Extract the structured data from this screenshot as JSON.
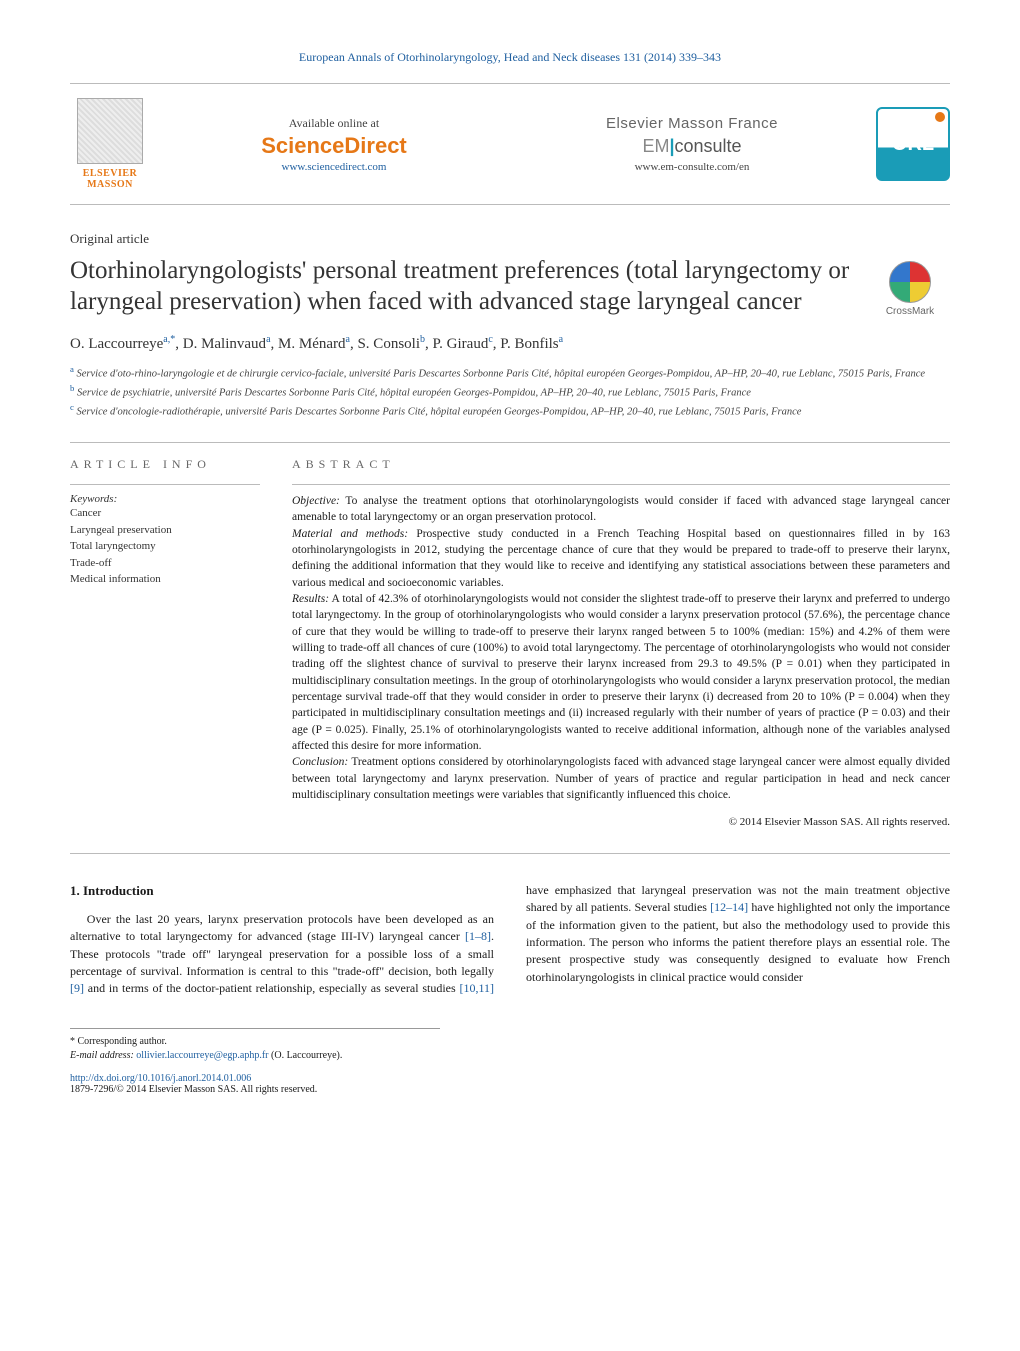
{
  "journal_header": "European Annals of Otorhinolaryngology, Head and Neck diseases 131 (2014) 339–343",
  "banner": {
    "elsevier_label": "ELSEVIER MASSON",
    "available_label": "Available online at",
    "sciencedirect": "ScienceDirect",
    "sd_url": "www.sciencedirect.com",
    "masson_label": "Elsevier Masson France",
    "em_prefix": "EM",
    "em_suffix": "consulte",
    "em_url": "www.em-consulte.com/en",
    "orl_label": "ORL"
  },
  "crossmark_label": "CrossMark",
  "article_type": "Original article",
  "title": "Otorhinolaryngologists' personal treatment preferences (total laryngectomy or laryngeal preservation) when faced with advanced stage laryngeal cancer",
  "authors_html": "O. Laccourreye<sup>a,*</sup>, D. Malinvaud<sup>a</sup>, M. Ménard<sup>a</sup>, S. Consoli<sup>b</sup>, P. Giraud<sup>c</sup>, P. Bonfils<sup>a</sup>",
  "affiliations": [
    {
      "sup": "a",
      "text": "Service d'oto-rhino-laryngologie et de chirurgie cervico-faciale, université Paris Descartes Sorbonne Paris Cité, hôpital européen Georges-Pompidou, AP–HP, 20–40, rue Leblanc, 75015 Paris, France"
    },
    {
      "sup": "b",
      "text": "Service de psychiatrie, université Paris Descartes Sorbonne Paris Cité, hôpital européen Georges-Pompidou, AP–HP, 20–40, rue Leblanc, 75015 Paris, France"
    },
    {
      "sup": "c",
      "text": "Service d'oncologie-radiothérapie, université Paris Descartes Sorbonne Paris Cité, hôpital européen Georges-Pompidou, AP–HP, 20–40, rue Leblanc, 75015 Paris, France"
    }
  ],
  "info_head": "article info",
  "abs_head": "abstract",
  "keywords_label": "Keywords:",
  "keywords": [
    "Cancer",
    "Laryngeal preservation",
    "Total laryngectomy",
    "Trade-off",
    "Medical information"
  ],
  "abstract": {
    "objective_label": "Objective:",
    "objective": "To analyse the treatment options that otorhinolaryngologists would consider if faced with advanced stage laryngeal cancer amenable to total laryngectomy or an organ preservation protocol.",
    "methods_label": "Material and methods:",
    "methods": "Prospective study conducted in a French Teaching Hospital based on questionnaires filled in by 163 otorhinolaryngologists in 2012, studying the percentage chance of cure that they would be prepared to trade-off to preserve their larynx, defining the additional information that they would like to receive and identifying any statistical associations between these parameters and various medical and socioeconomic variables.",
    "results_label": "Results:",
    "results": "A total of 42.3% of otorhinolaryngologists would not consider the slightest trade-off to preserve their larynx and preferred to undergo total laryngectomy. In the group of otorhinolaryngologists who would consider a larynx preservation protocol (57.6%), the percentage chance of cure that they would be willing to trade-off to preserve their larynx ranged between 5 to 100% (median: 15%) and 4.2% of them were willing to trade-off all chances of cure (100%) to avoid total laryngectomy. The percentage of otorhinolaryngologists who would not consider trading off the slightest chance of survival to preserve their larynx increased from 29.3 to 49.5% (P = 0.01) when they participated in multidisciplinary consultation meetings. In the group of otorhinolaryngologists who would consider a larynx preservation protocol, the median percentage survival trade-off that they would consider in order to preserve their larynx (i) decreased from 20 to 10% (P = 0.004) when they participated in multidisciplinary consultation meetings and (ii) increased regularly with their number of years of practice (P = 0.03) and their age (P = 0.025). Finally, 25.1% of otorhinolaryngologists wanted to receive additional information, although none of the variables analysed affected this desire for more information.",
    "conclusion_label": "Conclusion:",
    "conclusion": "Treatment options considered by otorhinolaryngologists faced with advanced stage laryngeal cancer were almost equally divided between total laryngectomy and larynx preservation. Number of years of practice and regular participation in head and neck cancer multidisciplinary consultation meetings were variables that significantly influenced this choice."
  },
  "copyright": "© 2014 Elsevier Masson SAS. All rights reserved.",
  "introduction_head": "1. Introduction",
  "intro_p1_a": "Over the last 20 years, larynx preservation protocols have been developed as an alternative to total laryngectomy for advanced (stage III-IV) laryngeal cancer ",
  "intro_cite1": "[1–8]",
  "intro_p1_b": ". These protocols \"trade off\" laryngeal preservation for a possible loss of a small percentage of",
  "intro_p2_a": "survival. Information is central to this \"trade-off\" decision, both legally ",
  "intro_cite2": "[9]",
  "intro_p2_b": " and in terms of the doctor-patient relationship, especially as several studies ",
  "intro_cite3": "[10,11]",
  "intro_p2_c": " have emphasized that laryngeal preservation was not the main treatment objective shared by all patients. Several studies ",
  "intro_cite4": "[12–14]",
  "intro_p2_d": " have highlighted not only the importance of the information given to the patient, but also the methodology used to provide this information. The person who informs the patient therefore plays an essential role. The present prospective study was consequently designed to evaluate how French otorhinolaryngologists in clinical practice would consider",
  "footnotes": {
    "corr_label": "* Corresponding author.",
    "email_label": "E-mail address:",
    "email": "ollivier.laccourreye@egp.aphp.fr",
    "email_who": "(O. Laccourreye)."
  },
  "doi": "http://dx.doi.org/10.1016/j.anorl.2014.01.006",
  "issn_line": "1879-7296/© 2014 Elsevier Masson SAS. All rights reserved.",
  "colors": {
    "link_blue": "#2060a0",
    "elsevier_orange": "#e67817",
    "teal": "#1a9cb7",
    "text": "#1a1a1a",
    "border": "#bbbbbb"
  }
}
